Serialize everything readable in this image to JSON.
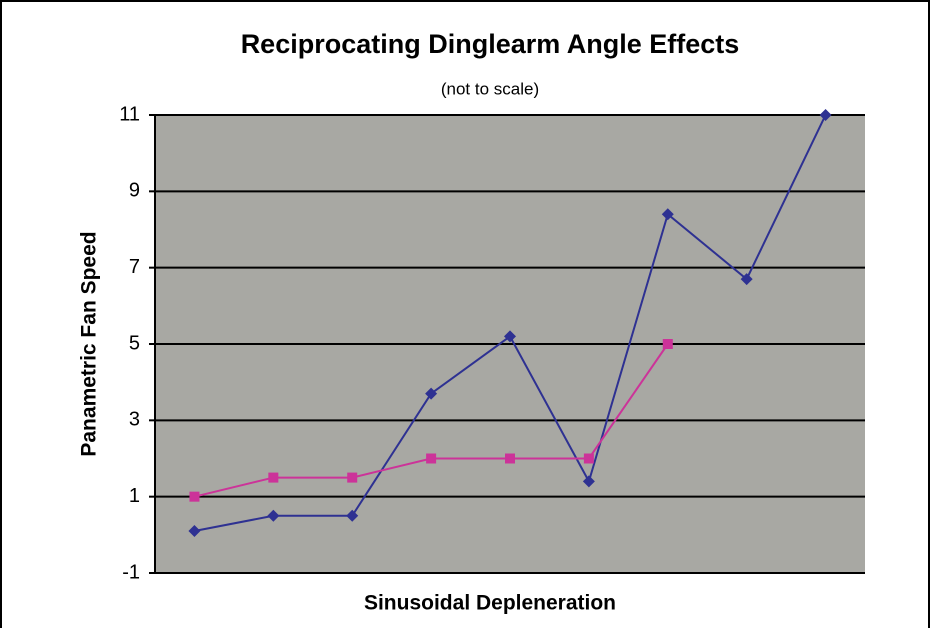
{
  "chart_data": {
    "type": "line",
    "title": "Reciprocating Dinglearm Angle Effects",
    "subtitle": "(not to scale)",
    "x_label": "Sinusoidal Depleneration",
    "y_label": "Panametric Fan Speed",
    "categories": [
      null,
      null,
      null,
      null,
      null,
      null,
      null,
      null,
      null
    ],
    "series": [
      {
        "color": "#2e3192",
        "marker": "diamond",
        "values": [
          0.1,
          0.5,
          0.5,
          3.7,
          5.2,
          1.4,
          8.4,
          6.7,
          11
        ]
      },
      {
        "color": "#cc3399",
        "marker": "square",
        "values": [
          1.0,
          1.5,
          1.5,
          2.0,
          2.0,
          2.0,
          5.0,
          null,
          null
        ]
      }
    ],
    "ylim": [
      -1,
      11
    ],
    "yticks": [
      -1,
      1,
      3,
      5,
      7,
      9,
      11
    ],
    "grid": true
  }
}
